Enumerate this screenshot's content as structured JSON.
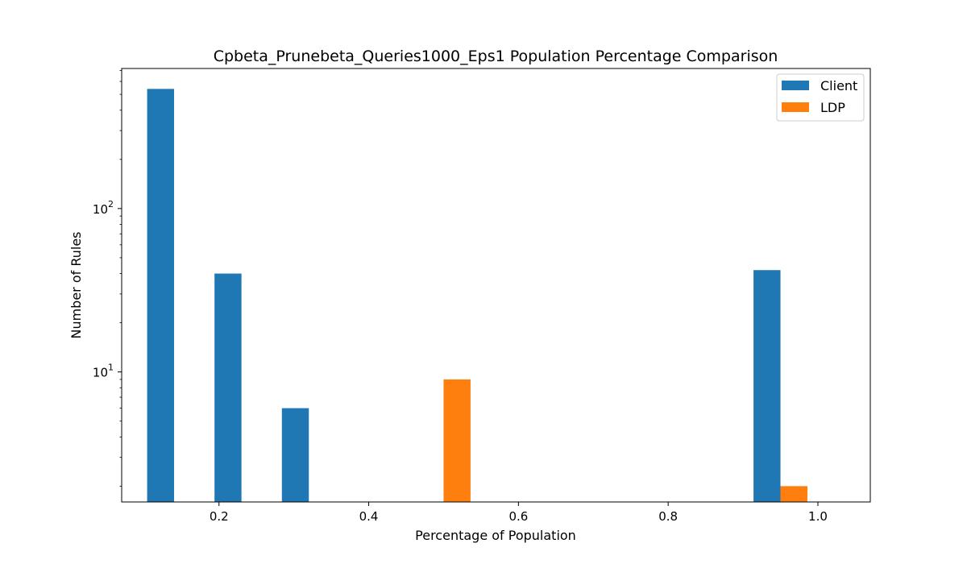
{
  "chart_data": {
    "type": "bar",
    "title": "Cpbeta_Prunebeta_Queries1000_Eps1 Population Percentage Comparison",
    "xlabel": "Percentage of Population",
    "ylabel": "Number of Rules",
    "yscale": "log",
    "xlim": [
      0.07,
      1.07
    ],
    "ylim": [
      1.6,
      720
    ],
    "grid": false,
    "legend_position": "top-right",
    "bar_width": 0.036,
    "x_ticks": [
      {
        "value": 0.2,
        "label": "0.2"
      },
      {
        "value": 0.4,
        "label": "0.4"
      },
      {
        "value": 0.6,
        "label": "0.6"
      },
      {
        "value": 0.8,
        "label": "0.8"
      },
      {
        "value": 1.0,
        "label": "1.0"
      }
    ],
    "y_ticks": [
      {
        "value": 10,
        "base": "10",
        "exp": "1"
      },
      {
        "value": 100,
        "base": "10",
        "exp": "2"
      }
    ],
    "series": [
      {
        "name": "Client",
        "color": "#1f77b4",
        "bars": [
          {
            "x": 0.122,
            "value": 540
          },
          {
            "x": 0.212,
            "value": 40
          },
          {
            "x": 0.302,
            "value": 6
          },
          {
            "x": 0.932,
            "value": 42
          }
        ]
      },
      {
        "name": "LDP",
        "color": "#ff7f0e",
        "bars": [
          {
            "x": 0.518,
            "value": 9
          },
          {
            "x": 0.968,
            "value": 2
          }
        ]
      }
    ]
  }
}
